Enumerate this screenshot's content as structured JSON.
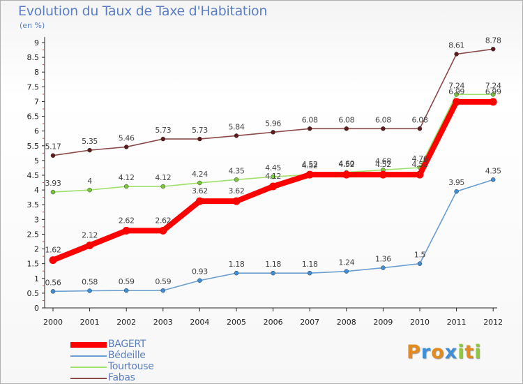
{
  "header": {
    "title": "Evolution du Taux de Taxe d'Habitation",
    "subtitle": "(en %)"
  },
  "logo": {
    "text": "Proxiti",
    "letters": [
      {
        "ch": "P",
        "color": "#e58a1f"
      },
      {
        "ch": "r",
        "color": "#3f8ed8"
      },
      {
        "ch": "o",
        "color": "#e58a1f"
      },
      {
        "ch": "x",
        "color": "#3f8ed8"
      },
      {
        "ch": "i",
        "color": "#8fc73e"
      },
      {
        "ch": "t",
        "color": "#e58a1f"
      },
      {
        "ch": "i",
        "color": "#8fc73e"
      }
    ]
  },
  "chart_data": {
    "type": "line",
    "title": "Evolution du Taux de Taxe d'Habitation",
    "subtitle": "(en %)",
    "xlabel": "",
    "ylabel": "",
    "x": [
      "2000",
      "2001",
      "2002",
      "2003",
      "2004",
      "2005",
      "2006",
      "2007",
      "2008",
      "2009",
      "2010",
      "2011",
      "2012"
    ],
    "y_ticks": [
      "0",
      "0.5",
      "1",
      "1.5",
      "2",
      "2.5",
      "3",
      "3.5",
      "4",
      "4.5",
      "5",
      "5.5",
      "6",
      "6.5",
      "7",
      "7.5",
      "8",
      "8.5",
      "9"
    ],
    "ylim": [
      0,
      9
    ],
    "grid": false,
    "legend_position": "bottom-left",
    "series": [
      {
        "name": "BAGERT",
        "color": "#ff0000",
        "marker_color": "#ff0000",
        "values": [
          1.62,
          2.12,
          2.62,
          2.62,
          3.62,
          3.62,
          4.12,
          4.52,
          4.52,
          4.52,
          4.52,
          6.99,
          6.99
        ],
        "labels": [
          "1.62",
          "2.12",
          "2.62",
          "2.62",
          "3.62",
          "3.62",
          "4.12",
          "4.52",
          "4.52",
          "4.52",
          "4.52",
          "6.99",
          "6.99"
        ]
      },
      {
        "name": "Bédeille",
        "color": "#6a9ed0",
        "marker_color": "#3f8ed8",
        "values": [
          0.56,
          0.58,
          0.59,
          0.59,
          0.93,
          1.18,
          1.18,
          1.18,
          1.24,
          1.36,
          1.5,
          3.95,
          4.35
        ],
        "labels": [
          "0.56",
          "0.58",
          "0.59",
          "0.59",
          "0.93",
          "1.18",
          "1.18",
          "1.18",
          "1.24",
          "1.36",
          "1.5",
          "3.95",
          "4.35"
        ]
      },
      {
        "name": "Tourtouse",
        "color": "#9ee06a",
        "marker_color": "#7cc63e",
        "values": [
          3.93,
          4,
          4.12,
          4.12,
          4.24,
          4.35,
          4.45,
          4.52,
          4.6,
          4.68,
          4.76,
          7.24,
          7.24
        ],
        "labels": [
          "3.93",
          "4",
          "4.12",
          "4.12",
          "4.24",
          "4.35",
          "4.45",
          "4.52",
          "4.60",
          "4.68",
          "4.76",
          "7.24",
          "7.24"
        ]
      },
      {
        "name": "Fabas",
        "color": "#8b4a4a",
        "marker_color": "#5e1a1a",
        "values": [
          5.17,
          5.35,
          5.46,
          5.73,
          5.73,
          5.84,
          5.96,
          6.08,
          6.08,
          6.08,
          6.08,
          8.61,
          8.78
        ],
        "labels": [
          "5.17",
          "5.35",
          "5.46",
          "5.73",
          "5.73",
          "5.84",
          "5.96",
          "6.08",
          "6.08",
          "6.08",
          "6.08",
          "8.61",
          "8.78"
        ]
      }
    ]
  }
}
